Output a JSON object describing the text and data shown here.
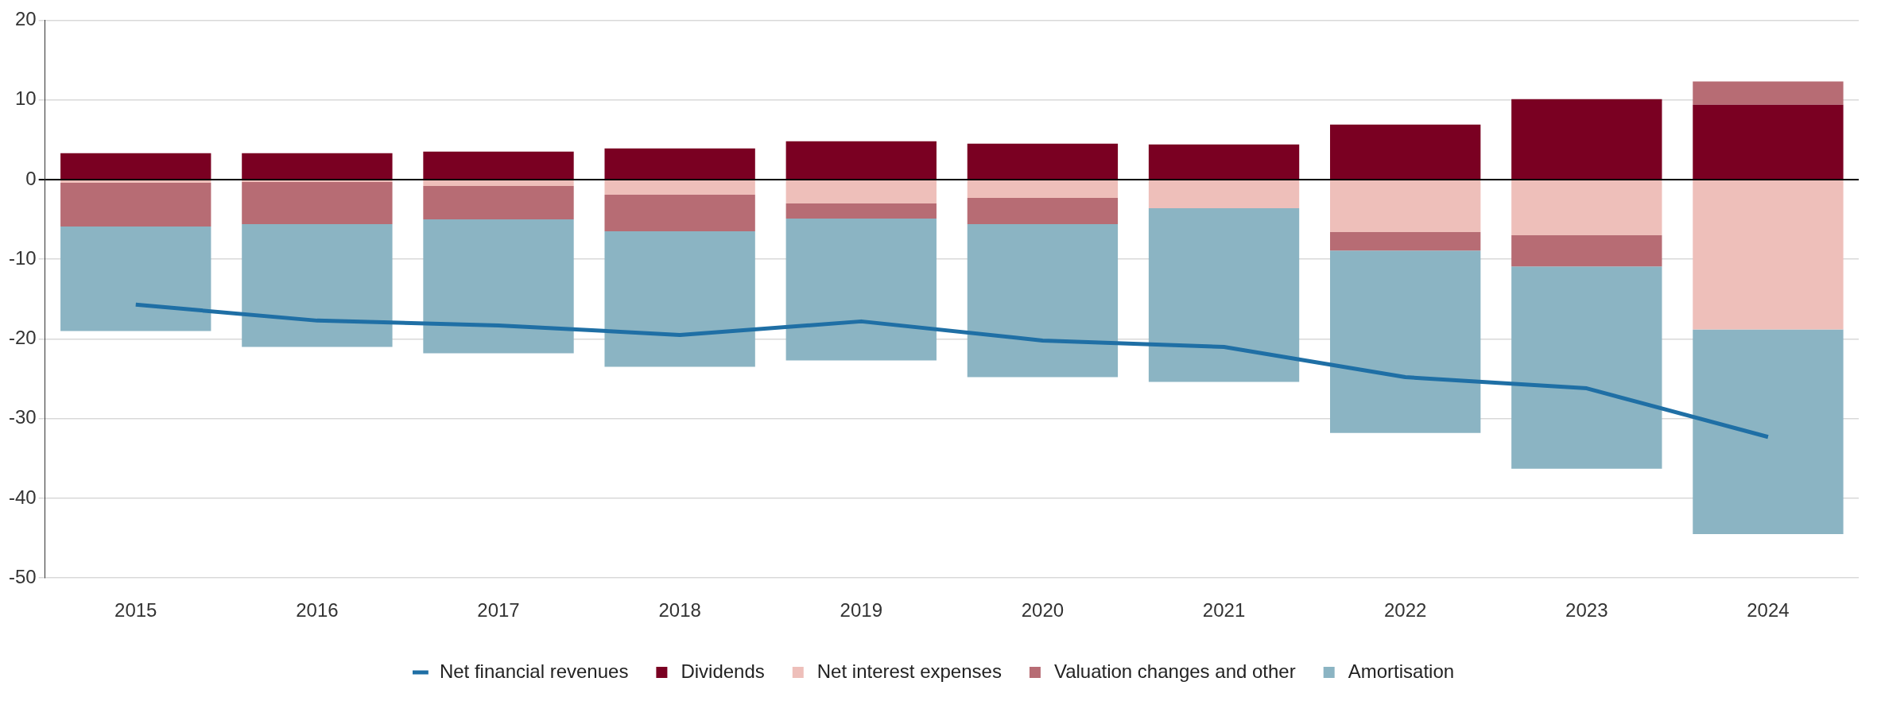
{
  "chart_data": {
    "type": "bar",
    "stacked": true,
    "categories": [
      "2015",
      "2016",
      "2017",
      "2018",
      "2019",
      "2020",
      "2021",
      "2022",
      "2023",
      "2024"
    ],
    "series": [
      {
        "name": "Dividends",
        "color": "#7a0022",
        "values": [
          3.3,
          3.3,
          3.5,
          3.9,
          4.8,
          4.5,
          4.4,
          6.9,
          10.1,
          9.4
        ]
      },
      {
        "name": "Net interest expenses",
        "color": "#eebfba",
        "values": [
          -0.4,
          -0.3,
          -0.8,
          -1.9,
          -3.0,
          -2.3,
          -3.6,
          -6.6,
          -7.0,
          -18.8
        ]
      },
      {
        "name": "Valuation changes and other",
        "color": "#b76c74",
        "values": [
          -5.5,
          -5.3,
          -4.2,
          -4.6,
          -1.9,
          -3.3,
          0,
          -2.3,
          -3.9,
          2.9
        ]
      },
      {
        "name": "Amortisation",
        "color": "#8bb4c3",
        "values": [
          -13.1,
          -15.4,
          -16.8,
          -17.0,
          -17.8,
          -19.2,
          -21.8,
          -22.9,
          -25.4,
          -25.7
        ]
      },
      {
        "name": "Net financial revenues",
        "type": "line",
        "color": "#1f6fa5",
        "values": [
          -15.7,
          -17.7,
          -18.3,
          -19.5,
          -17.8,
          -20.2,
          -21.0,
          -24.8,
          -26.2,
          -32.3
        ]
      }
    ],
    "ylim": [
      -50,
      20
    ],
    "yticks": [
      -50,
      -40,
      -30,
      -20,
      -10,
      0,
      10,
      20
    ],
    "grid": "y",
    "legend": "bottom"
  }
}
